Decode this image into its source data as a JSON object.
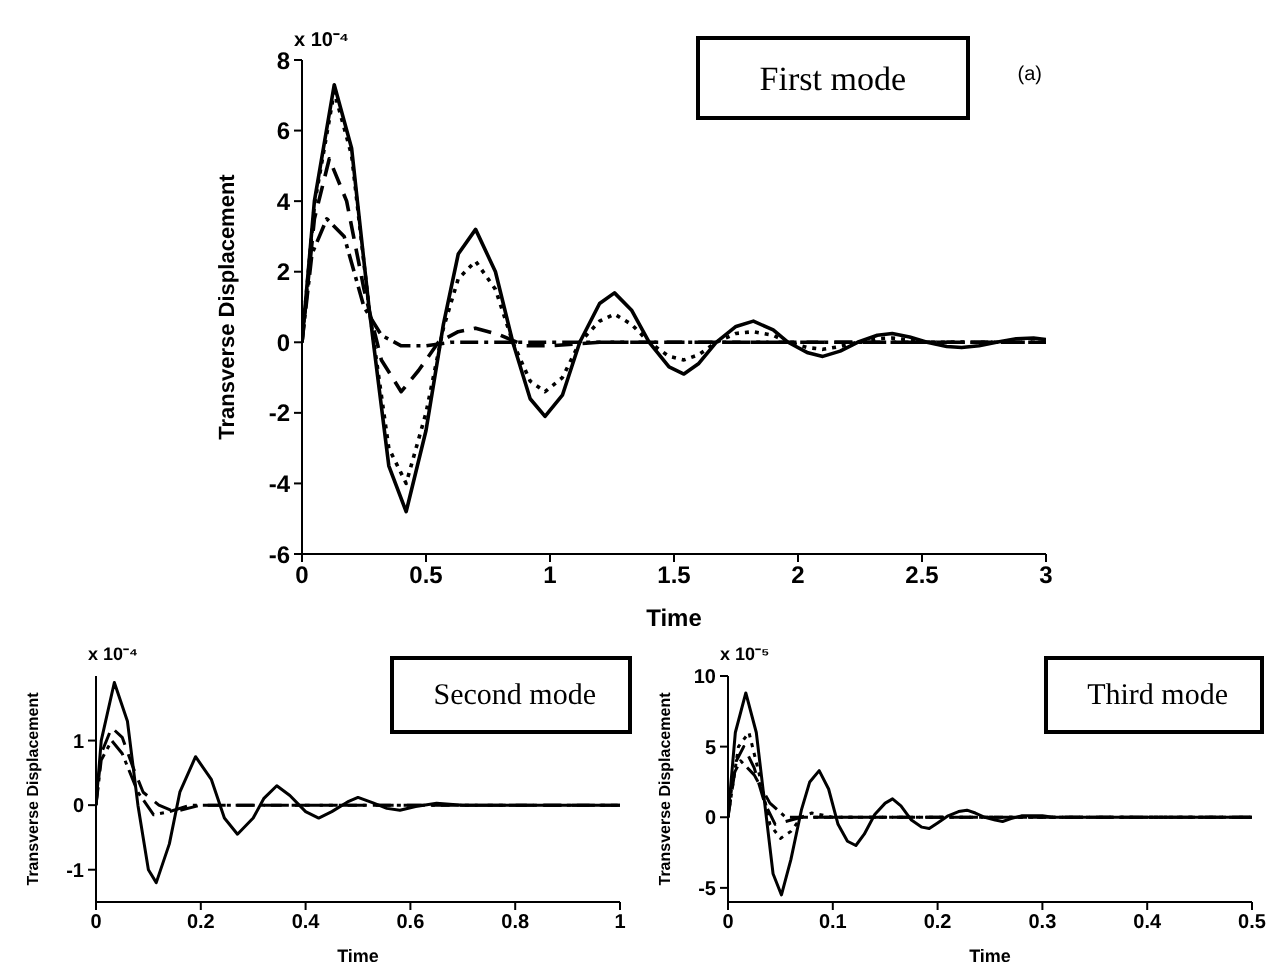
{
  "chart_data": [
    {
      "type": "line",
      "title": "First mode",
      "xlabel": "Time",
      "ylabel": "Transverse Displacement",
      "annotations": [
        "x 10⁻⁴",
        "(a)"
      ],
      "xlim": [
        0,
        3
      ],
      "xticks": [
        0,
        0.5,
        1,
        1.5,
        2,
        2.5,
        3
      ],
      "ylim": [
        -6,
        8
      ],
      "yticks": [
        -6,
        -4,
        -2,
        0,
        2,
        4,
        6,
        8
      ],
      "marker": "none",
      "series": [
        {
          "color": "#000000",
          "line_style": "solid",
          "x": [
            0,
            0.05,
            0.13,
            0.2,
            0.27,
            0.35,
            0.42,
            0.5,
            0.57,
            0.63,
            0.7,
            0.78,
            0.85,
            0.92,
            0.98,
            1.05,
            1.12,
            1.2,
            1.26,
            1.33,
            1.4,
            1.48,
            1.54,
            1.6,
            1.67,
            1.75,
            1.82,
            1.9,
            1.96,
            2.04,
            2.1,
            2.17,
            2.24,
            2.32,
            2.38,
            2.45,
            2.52,
            2.6,
            2.66,
            2.73,
            2.8,
            2.88,
            2.95,
            3
          ],
          "values": [
            0,
            4,
            7.3,
            5.5,
            1,
            -3.5,
            -4.8,
            -2.5,
            0.5,
            2.5,
            3.2,
            2,
            0,
            -1.6,
            -2.1,
            -1.5,
            0,
            1.1,
            1.4,
            0.9,
            0,
            -0.7,
            -0.9,
            -0.6,
            0,
            0.45,
            0.6,
            0.35,
            0,
            -0.3,
            -0.4,
            -0.25,
            0,
            0.2,
            0.25,
            0.15,
            0,
            -0.12,
            -0.15,
            -0.1,
            0,
            0.1,
            0.12,
            0.08
          ]
        },
        {
          "color": "#000000",
          "line_style": "dotted",
          "x": [
            0,
            0.05,
            0.13,
            0.2,
            0.27,
            0.35,
            0.42,
            0.5,
            0.57,
            0.63,
            0.7,
            0.78,
            0.85,
            0.92,
            0.98,
            1.05,
            1.12,
            1.2,
            1.26,
            1.33,
            1.4,
            1.48,
            1.54,
            1.6,
            1.67,
            1.75,
            1.82,
            1.9,
            1.96,
            2.04,
            2.1,
            2.17,
            2.24,
            2.32,
            2.38,
            2.45,
            2.52,
            3
          ],
          "values": [
            0,
            3.9,
            7.1,
            5.3,
            1,
            -3,
            -4,
            -2,
            0.4,
            1.8,
            2.3,
            1.5,
            0,
            -1.1,
            -1.4,
            -1,
            0,
            0.6,
            0.8,
            0.5,
            0,
            -0.4,
            -0.5,
            -0.35,
            0,
            0.25,
            0.3,
            0.2,
            0,
            -0.15,
            -0.2,
            -0.12,
            0,
            0.1,
            0.12,
            0.07,
            0,
            0
          ]
        },
        {
          "color": "#000000",
          "line_style": "dashed",
          "x": [
            0,
            0.05,
            0.11,
            0.18,
            0.25,
            0.32,
            0.4,
            0.47,
            0.55,
            0.63,
            0.7,
            0.8,
            0.9,
            1,
            1.2,
            3
          ],
          "values": [
            0,
            3.5,
            5.2,
            4,
            1.5,
            -0.5,
            -1.4,
            -0.8,
            0,
            0.3,
            0.4,
            0.2,
            -0.1,
            -0.1,
            0,
            0
          ]
        },
        {
          "color": "#000000",
          "line_style": "dashdot",
          "x": [
            0,
            0.04,
            0.1,
            0.17,
            0.25,
            0.32,
            0.4,
            0.5,
            0.6,
            3
          ],
          "values": [
            0,
            2.5,
            3.5,
            3,
            1,
            0.2,
            -0.1,
            -0.1,
            0,
            0
          ]
        }
      ]
    },
    {
      "type": "line",
      "title": "Second mode",
      "xlabel": "Time",
      "ylabel": "Transverse Displacement",
      "annotations": [
        "x 10⁻⁴"
      ],
      "xlim": [
        0,
        1
      ],
      "xticks": [
        0,
        0.2,
        0.4,
        0.6,
        0.8,
        1
      ],
      "ylim": [
        -1.5,
        2
      ],
      "yticks": [
        -1,
        0,
        1
      ],
      "marker": "none",
      "series": [
        {
          "color": "#000000",
          "line_style": "solid",
          "x": [
            0,
            0.01,
            0.035,
            0.06,
            0.08,
            0.1,
            0.115,
            0.14,
            0.16,
            0.19,
            0.22,
            0.245,
            0.27,
            0.3,
            0.32,
            0.345,
            0.37,
            0.4,
            0.425,
            0.45,
            0.48,
            0.5,
            0.53,
            0.555,
            0.58,
            0.61,
            0.65,
            0.7,
            1
          ],
          "values": [
            0,
            1,
            1.9,
            1.3,
            0,
            -1,
            -1.2,
            -0.6,
            0.2,
            0.75,
            0.4,
            -0.2,
            -0.45,
            -0.2,
            0.1,
            0.3,
            0.15,
            -0.1,
            -0.2,
            -0.1,
            0.05,
            0.12,
            0.03,
            -0.05,
            -0.08,
            -0.02,
            0.03,
            0,
            0
          ]
        },
        {
          "color": "#000000",
          "line_style": "dashed",
          "x": [
            0,
            0.01,
            0.03,
            0.05,
            0.07,
            0.09,
            0.12,
            0.15,
            0.2,
            1
          ],
          "values": [
            0,
            0.8,
            1.2,
            1.05,
            0.6,
            0.2,
            0,
            -0.1,
            0,
            0
          ]
        },
        {
          "color": "#000000",
          "line_style": "dashdot",
          "x": [
            0,
            0.01,
            0.03,
            0.05,
            0.08,
            0.11,
            0.14,
            0.18,
            1
          ],
          "values": [
            0,
            0.7,
            1,
            0.8,
            0.2,
            -0.15,
            -0.1,
            0,
            0
          ]
        }
      ]
    },
    {
      "type": "line",
      "title": "Third mode",
      "xlabel": "Time",
      "ylabel": "Transverse Displacement",
      "annotations": [
        "x 10⁻⁵"
      ],
      "xlim": [
        0,
        0.5
      ],
      "xticks": [
        0,
        0.1,
        0.2,
        0.3,
        0.4,
        0.5
      ],
      "ylim": [
        -6,
        10
      ],
      "yticks": [
        -5,
        0,
        5,
        10
      ],
      "marker": "none",
      "series": [
        {
          "color": "#000000",
          "line_style": "solid",
          "x": [
            0,
            0.007,
            0.017,
            0.027,
            0.035,
            0.043,
            0.051,
            0.06,
            0.07,
            0.078,
            0.087,
            0.096,
            0.105,
            0.114,
            0.122,
            0.13,
            0.14,
            0.15,
            0.157,
            0.165,
            0.175,
            0.185,
            0.192,
            0.2,
            0.21,
            0.22,
            0.228,
            0.236,
            0.245,
            0.255,
            0.262,
            0.27,
            0.28,
            0.3,
            0.31,
            0.5
          ],
          "values": [
            0,
            6,
            8.8,
            6,
            1,
            -4,
            -5.5,
            -3,
            0.5,
            2.5,
            3.3,
            2,
            -0.5,
            -1.7,
            -2,
            -1.2,
            0.2,
            1,
            1.3,
            0.8,
            -0.2,
            -0.7,
            -0.8,
            -0.4,
            0.1,
            0.4,
            0.5,
            0.3,
            0,
            -0.2,
            -0.3,
            -0.1,
            0.1,
            0.1,
            0,
            0
          ]
        },
        {
          "color": "#000000",
          "line_style": "dotted",
          "x": [
            0,
            0.01,
            0.02,
            0.03,
            0.04,
            0.05,
            0.06,
            0.07,
            0.08,
            0.1,
            0.5
          ],
          "values": [
            0,
            5,
            6,
            3,
            -0.5,
            -1.5,
            -1,
            0,
            0.3,
            0,
            0
          ]
        },
        {
          "color": "#000000",
          "line_style": "dashed",
          "x": [
            0,
            0.008,
            0.015,
            0.025,
            0.035,
            0.045,
            0.055,
            0.07,
            0.5
          ],
          "values": [
            0,
            4,
            5,
            3.5,
            1,
            -0.5,
            -0.3,
            0,
            0
          ]
        },
        {
          "color": "#000000",
          "line_style": "dashdot",
          "x": [
            0,
            0.005,
            0.012,
            0.025,
            0.04,
            0.055,
            0.5
          ],
          "values": [
            0,
            3,
            4,
            3,
            1,
            0,
            0
          ]
        }
      ]
    }
  ]
}
